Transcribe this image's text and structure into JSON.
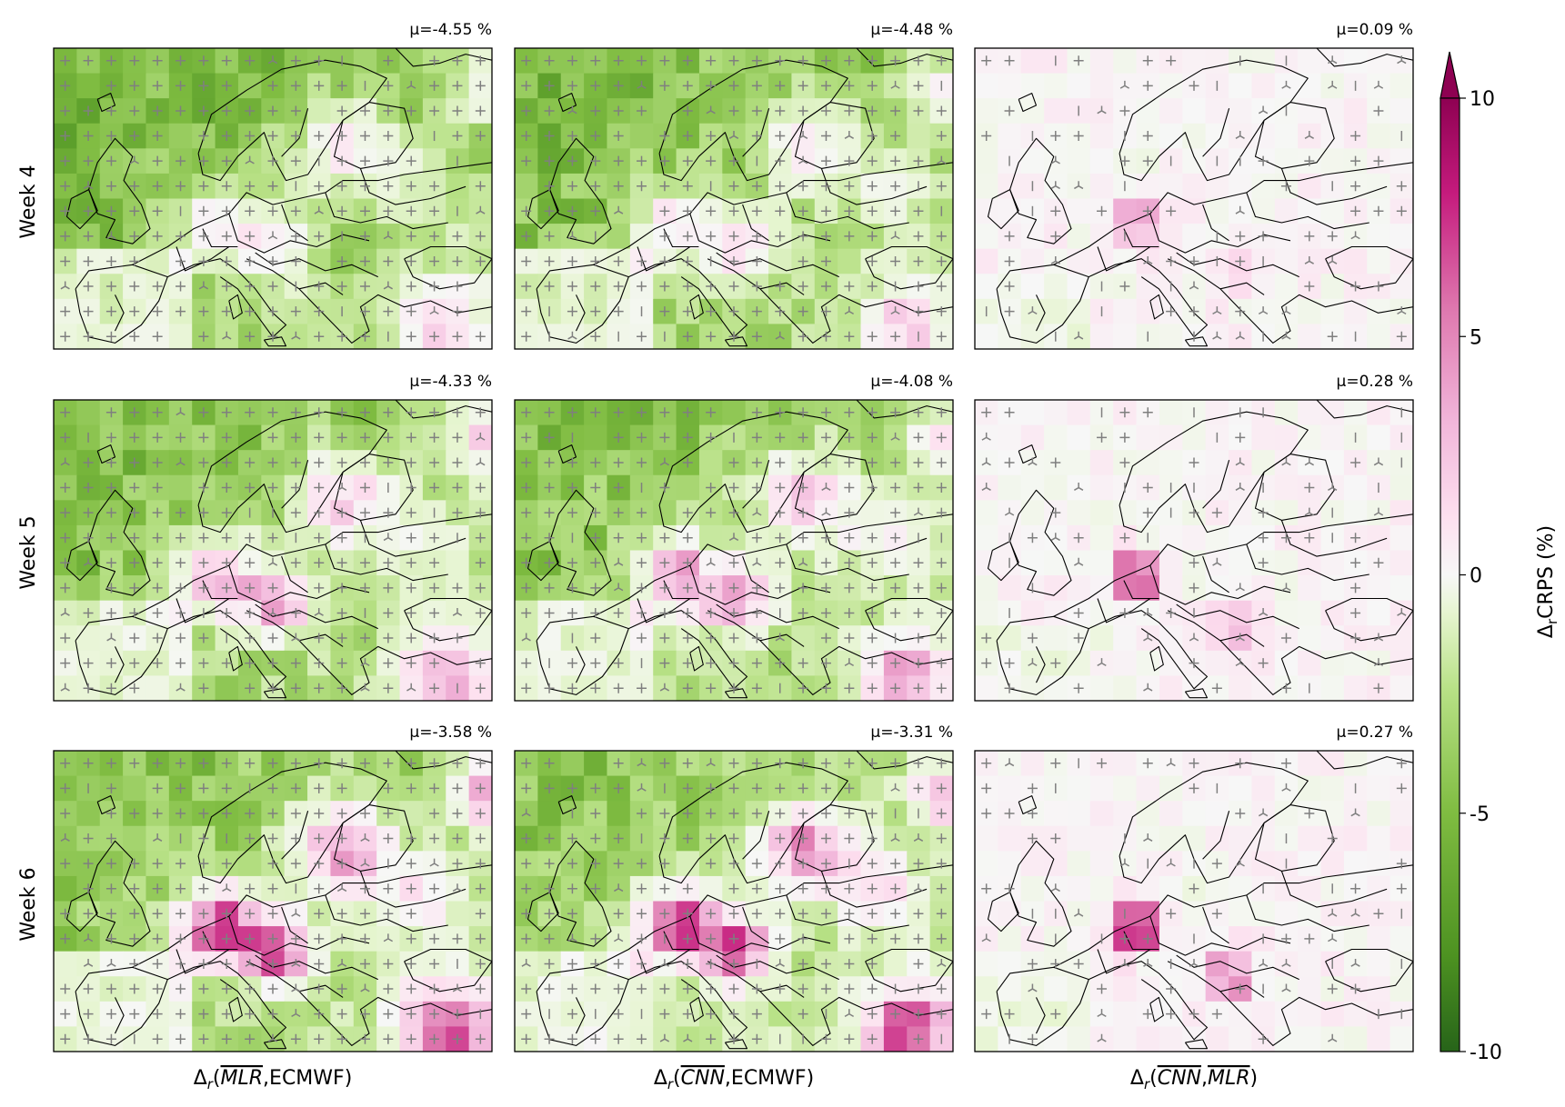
{
  "chart_data": {
    "type": "heatmap",
    "row_labels": [
      "Week 4",
      "Week 5",
      "Week 6"
    ],
    "column_labels": [
      {
        "prefix": "Δ",
        "sub": "r",
        "args": [
          "MLR",
          "ECMWF"
        ],
        "tilde": [
          true,
          false
        ]
      },
      {
        "prefix": "Δ",
        "sub": "r",
        "args": [
          "CNN",
          "ECMWF"
        ],
        "tilde": [
          true,
          false
        ]
      },
      {
        "prefix": "Δ",
        "sub": "r",
        "args": [
          "CNN",
          "MLR"
        ],
        "tilde": [
          true,
          true
        ]
      }
    ],
    "panel_means": [
      [
        "μ=-4.55 %",
        "μ=-4.48 %",
        "μ=0.09 %"
      ],
      [
        "μ=-4.33 %",
        "μ=-4.08 %",
        "μ=0.28 %"
      ],
      [
        "μ=-3.58 %",
        "μ=-3.31 %",
        "μ=0.27 %"
      ]
    ],
    "grid": {
      "rows": 12,
      "cols": 19
    },
    "colorbar": {
      "label": "Δ_rCRPS (%)",
      "label_main": "CRPS (%)",
      "label_prefix": "Δ",
      "label_sub": "r",
      "ticks": [
        "10",
        "5",
        "0",
        "-5",
        "-10"
      ],
      "range": [
        -10,
        10
      ],
      "extend": "max",
      "colormap": "PiYG_r",
      "colors": [
        "#276419",
        "#4d9221",
        "#7fbc41",
        "#b8e186",
        "#e6f5d0",
        "#f7f7f7",
        "#fde0ef",
        "#f1b6da",
        "#de77ae",
        "#c51b7d",
        "#8e0152"
      ]
    },
    "marker_symbols": [
      "+",
      "|",
      "⅄"
    ],
    "marker_color": "#7f7f7f"
  }
}
